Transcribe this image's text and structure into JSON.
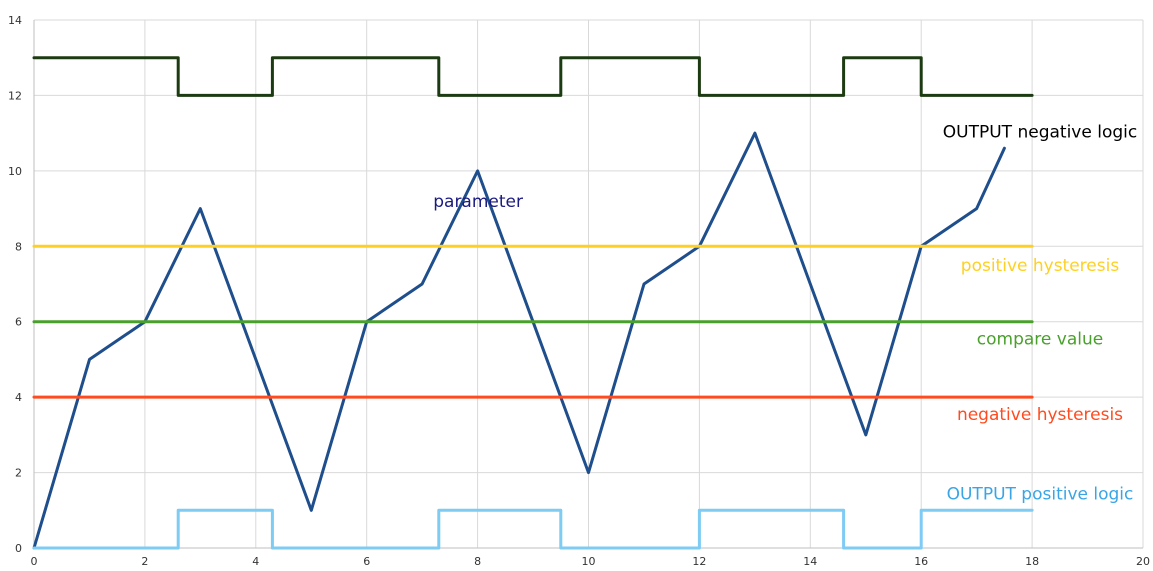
{
  "chart_data": {
    "type": "line",
    "title": "",
    "xlabel": "",
    "ylabel": "",
    "xlim": [
      0,
      20
    ],
    "ylim": [
      0,
      14
    ],
    "grid": true,
    "x_ticks": [
      "0",
      "2",
      "4",
      "6",
      "8",
      "10",
      "12",
      "14",
      "16",
      "18",
      "20"
    ],
    "y_ticks": [
      "0",
      "2",
      "4",
      "6",
      "8",
      "10",
      "12",
      "14"
    ],
    "series": [
      {
        "name": "parameter",
        "color": "#1f4e8c",
        "x": [
          0,
          1,
          2,
          3,
          4,
          5,
          6,
          7,
          8,
          9,
          10,
          11,
          12,
          13,
          14,
          15,
          16,
          17,
          17.5
        ],
        "y": [
          0,
          5,
          6,
          9,
          5,
          1,
          6,
          7,
          10,
          6,
          2,
          7,
          8,
          11,
          7,
          3,
          8,
          9,
          10.6
        ]
      },
      {
        "name": "positive hysteresis",
        "color": "#ffd024",
        "x": [
          0,
          18
        ],
        "y": [
          8,
          8
        ]
      },
      {
        "name": "compare value",
        "color": "#4aa02c",
        "x": [
          0,
          18
        ],
        "y": [
          6,
          6
        ]
      },
      {
        "name": "negative hysteresis",
        "color": "#ff4b1f",
        "x": [
          0,
          18
        ],
        "y": [
          4,
          4
        ]
      },
      {
        "name": "OUTPUT positive logic",
        "color": "#7ecbf4",
        "x": [
          0,
          2.6,
          2.6,
          4.3,
          4.3,
          7.3,
          7.3,
          9.5,
          9.5,
          12,
          12,
          14.6,
          14.6,
          16,
          16,
          18
        ],
        "y": [
          0,
          0,
          1,
          1,
          0,
          0,
          1,
          1,
          0,
          0,
          1,
          1,
          0,
          0,
          1,
          1
        ]
      },
      {
        "name": "OUTPUT negative logic",
        "color": "#1d3b12",
        "x": [
          0,
          2.6,
          2.6,
          4.3,
          4.3,
          7.3,
          7.3,
          9.5,
          9.5,
          12,
          12,
          14.6,
          14.6,
          16,
          16,
          18
        ],
        "y": [
          13,
          13,
          12,
          12,
          13,
          13,
          12,
          12,
          13,
          13,
          12,
          12,
          13,
          13,
          12,
          12
        ]
      }
    ],
    "annotations": [
      {
        "text": "parameter",
        "color": "#1a1a80",
        "x": 7.2,
        "y": 9.2
      },
      {
        "text": "positive hysteresis",
        "color": "#ffd024",
        "x": 18.5,
        "y": 7.5
      },
      {
        "text": "compare value",
        "color": "#4aa02c",
        "x": 18.5,
        "y": 5.55
      },
      {
        "text": "negative hysteresis",
        "color": "#ff4b1f",
        "x": 18.5,
        "y": 3.55
      },
      {
        "text": "OUTPUT positive logic",
        "color": "#3aa5e6",
        "x": 18.5,
        "y": 1.45
      },
      {
        "text": "OUTPUT negative logic",
        "color": "#000000",
        "x": 18.5,
        "y": 11.05
      }
    ]
  }
}
